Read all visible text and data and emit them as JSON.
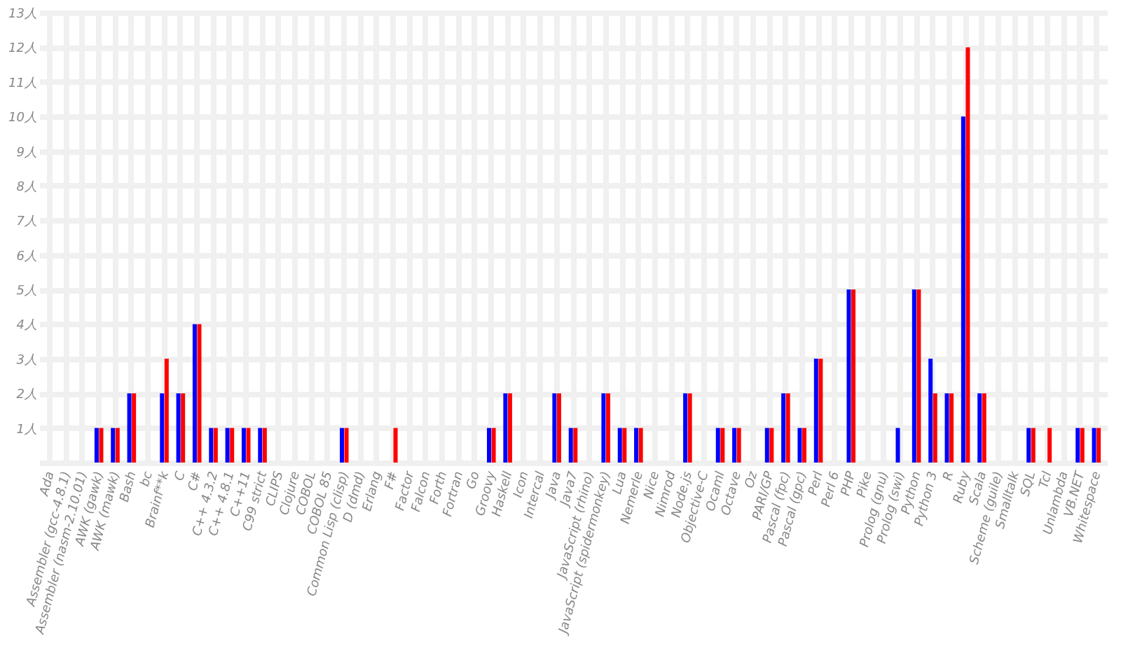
{
  "chart_data": {
    "type": "bar",
    "categories": [
      "Ada",
      "Assembler (gcc-4.8.1)",
      "Assembler (nasm-2.10.01)",
      "AWK (gawk)",
      "AWK (mawk)",
      "Bash",
      "bc",
      "Brainf**k",
      "C",
      "C#",
      "C++ 4.3.2",
      "C++ 4.8.1",
      "C++11",
      "C99 strict",
      "CLIPS",
      "Clojure",
      "COBOL",
      "COBOL 85",
      "Common Lisp (clisp)",
      "D (dmd)",
      "Erlang",
      "F#",
      "Factor",
      "Falcon",
      "Forth",
      "Fortran",
      "Go",
      "Groovy",
      "Haskell",
      "Icon",
      "Intercal",
      "Java",
      "Java7",
      "JavaScript (rhino)",
      "JavaScript (spidermonkey)",
      "Lua",
      "Nemerle",
      "Nice",
      "Nimrod",
      "Node.js",
      "Objective-C",
      "Ocaml",
      "Octave",
      "Oz",
      "PARI/GP",
      "Pascal (fpc)",
      "Pascal (gpc)",
      "Perl",
      "Perl 6",
      "PHP",
      "Pike",
      "Prolog (gnu)",
      "Prolog (swi)",
      "Python",
      "Python 3",
      "R",
      "Ruby",
      "Scala",
      "Scheme (guile)",
      "Smalltalk",
      "SQL",
      "Tcl",
      "Unlambda",
      "VB.NET",
      "Whitespace"
    ],
    "series": [
      {
        "color": "#0000ff",
        "values": [
          0,
          0,
          0,
          1,
          1,
          2,
          0,
          2,
          2,
          4,
          1,
          1,
          1,
          1,
          0,
          0,
          0,
          0,
          1,
          0,
          0,
          0,
          0,
          0,
          0,
          0,
          0,
          1,
          2,
          0,
          0,
          2,
          1,
          0,
          2,
          1,
          1,
          0,
          0,
          2,
          0,
          1,
          1,
          0,
          1,
          2,
          1,
          3,
          0,
          5,
          0,
          0,
          1,
          5,
          3,
          2,
          10,
          2,
          0,
          0,
          1,
          0,
          0,
          1,
          1
        ]
      },
      {
        "color": "#ff0000",
        "values": [
          0,
          0,
          0,
          1,
          1,
          2,
          0,
          3,
          2,
          4,
          1,
          1,
          1,
          1,
          0,
          0,
          0,
          0,
          1,
          0,
          0,
          1,
          0,
          0,
          0,
          0,
          0,
          1,
          2,
          0,
          0,
          2,
          1,
          0,
          2,
          1,
          1,
          0,
          0,
          2,
          0,
          1,
          1,
          0,
          1,
          2,
          1,
          3,
          0,
          5,
          0,
          0,
          0,
          5,
          2,
          2,
          12,
          2,
          0,
          0,
          1,
          1,
          0,
          1,
          1
        ]
      }
    ],
    "ylim": [
      0,
      13
    ],
    "yticks": [
      {
        "value": 0,
        "label": null
      },
      {
        "value": 1,
        "label": "1人"
      },
      {
        "value": 2,
        "label": "2人"
      },
      {
        "value": 3,
        "label": "3人"
      },
      {
        "value": 4,
        "label": "4人"
      },
      {
        "value": 5,
        "label": "5人"
      },
      {
        "value": 6,
        "label": "6人"
      },
      {
        "value": 7,
        "label": "7人"
      },
      {
        "value": 8,
        "label": "8人"
      },
      {
        "value": 9,
        "label": "9人"
      },
      {
        "value": 10,
        "label": "10人"
      },
      {
        "value": 11,
        "label": "11人"
      },
      {
        "value": 12,
        "label": "12人"
      },
      {
        "value": 13,
        "label": "13人"
      }
    ],
    "grid": true,
    "legend": false
  }
}
